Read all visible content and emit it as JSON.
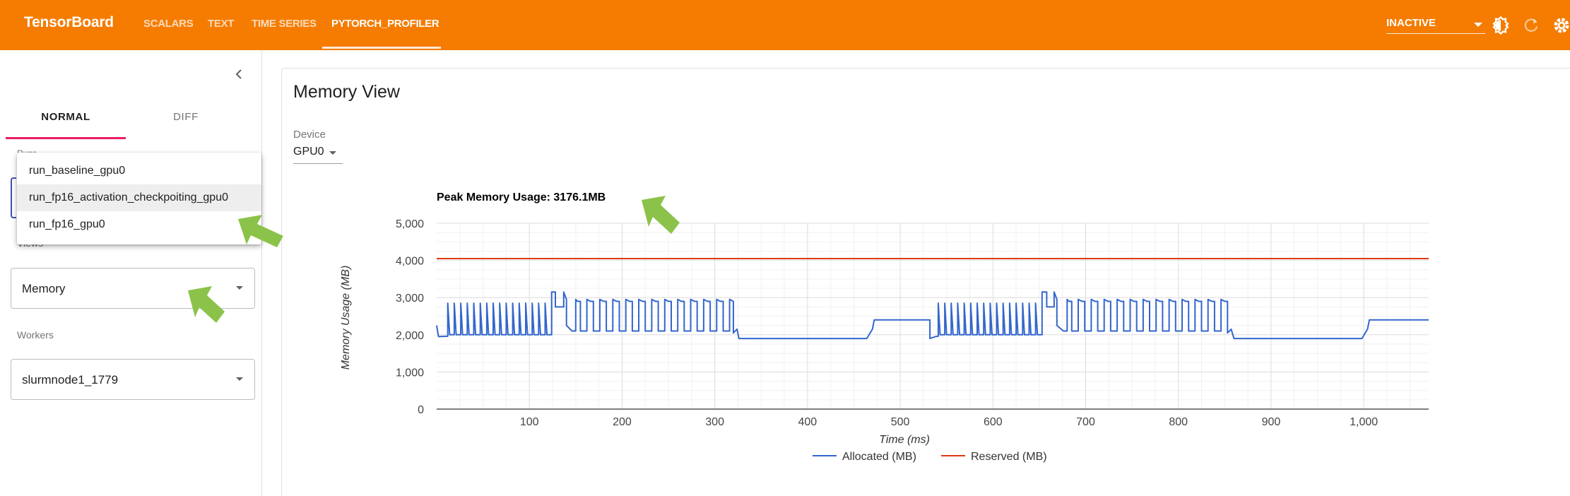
{
  "app": {
    "brand": "TensorBoard",
    "nav_tabs": [
      {
        "label": "SCALARS",
        "active": false
      },
      {
        "label": "TEXT",
        "active": false
      },
      {
        "label": "TIME SERIES",
        "active": false
      },
      {
        "label": "PYTORCH_PROFILER",
        "active": true
      }
    ],
    "status_select": {
      "value": "INACTIVE"
    },
    "toolbar_icons": [
      "theme-toggle-icon",
      "refresh-icon",
      "settings-icon"
    ]
  },
  "sidebar": {
    "tabs": [
      {
        "label": "NORMAL",
        "active": true
      },
      {
        "label": "DIFF",
        "active": false
      }
    ],
    "runs": {
      "label": "Runs",
      "options": [
        "run_baseline_gpu0",
        "run_fp16_activation_checkpoiting_gpu0",
        "run_fp16_gpu0"
      ],
      "highlighted": "run_fp16_activation_checkpoiting_gpu0"
    },
    "views": {
      "label": "Views",
      "value": "Memory"
    },
    "workers": {
      "label": "Workers",
      "value": "slurmnode1_1779"
    }
  },
  "main": {
    "title": "Memory View",
    "device": {
      "label": "Device",
      "value": "GPU0"
    },
    "peak_label": "Peak Memory Usage: 3176.1MB"
  },
  "chart_data": {
    "type": "line",
    "title": "Peak Memory Usage: 3176.1MB",
    "xlabel": "Time (ms)",
    "ylabel": "Memory Usage (MB)",
    "xlim": [
      0,
      1070
    ],
    "ylim": [
      0,
      5000
    ],
    "x_ticks": [
      100,
      200,
      300,
      400,
      500,
      600,
      700,
      800,
      900,
      1000
    ],
    "x_tick_labels": [
      "100",
      "200",
      "300",
      "400",
      "500",
      "600",
      "700",
      "800",
      "900",
      "1,000"
    ],
    "y_ticks": [
      0,
      1000,
      2000,
      3000,
      4000,
      5000
    ],
    "y_tick_labels": [
      "0",
      "1,000",
      "2,000",
      "3,000",
      "4,000",
      "5,000"
    ],
    "grid": true,
    "legend_position": "bottom-center",
    "series": [
      {
        "name": "Allocated (MB)",
        "color": "#3366cc",
        "points": [
          [
            0,
            2250
          ],
          [
            2,
            1950
          ],
          [
            12,
            1960
          ],
          [
            12,
            2850
          ],
          [
            14,
            2000
          ],
          [
            19,
            2000
          ],
          [
            19,
            2850
          ],
          [
            21,
            2000
          ],
          [
            26,
            2000
          ],
          [
            26,
            2850
          ],
          [
            28,
            2000
          ],
          [
            33,
            2000
          ],
          [
            33,
            2850
          ],
          [
            35,
            2000
          ],
          [
            40,
            2000
          ],
          [
            40,
            2850
          ],
          [
            42,
            2000
          ],
          [
            47,
            2000
          ],
          [
            47,
            2850
          ],
          [
            49,
            2000
          ],
          [
            54,
            2000
          ],
          [
            54,
            2850
          ],
          [
            56,
            2000
          ],
          [
            61,
            2000
          ],
          [
            61,
            2850
          ],
          [
            63,
            2000
          ],
          [
            68,
            2000
          ],
          [
            68,
            2850
          ],
          [
            70,
            2000
          ],
          [
            75,
            2000
          ],
          [
            75,
            2850
          ],
          [
            77,
            2000
          ],
          [
            82,
            2000
          ],
          [
            82,
            2850
          ],
          [
            84,
            2000
          ],
          [
            89,
            2000
          ],
          [
            89,
            2850
          ],
          [
            91,
            2000
          ],
          [
            96,
            2000
          ],
          [
            96,
            2850
          ],
          [
            98,
            2000
          ],
          [
            103,
            2000
          ],
          [
            103,
            2850
          ],
          [
            105,
            2000
          ],
          [
            110,
            2000
          ],
          [
            110,
            2850
          ],
          [
            112,
            2000
          ],
          [
            117,
            2000
          ],
          [
            117,
            2850
          ],
          [
            119,
            2000
          ],
          [
            124,
            2000
          ],
          [
            124,
            3150
          ],
          [
            128,
            3150
          ],
          [
            128,
            2750
          ],
          [
            137,
            2750
          ],
          [
            137,
            3150
          ],
          [
            140,
            2950
          ],
          [
            140,
            2250
          ],
          [
            146,
            2100
          ],
          [
            150,
            2100
          ],
          [
            150,
            2950
          ],
          [
            152,
            2900
          ],
          [
            155,
            2900
          ],
          [
            155,
            2100
          ],
          [
            162,
            2100
          ],
          [
            162,
            2950
          ],
          [
            166,
            2900
          ],
          [
            169,
            2900
          ],
          [
            169,
            2100
          ],
          [
            176,
            2100
          ],
          [
            176,
            2950
          ],
          [
            180,
            2900
          ],
          [
            183,
            2900
          ],
          [
            183,
            2100
          ],
          [
            190,
            2100
          ],
          [
            190,
            2950
          ],
          [
            194,
            2900
          ],
          [
            197,
            2900
          ],
          [
            197,
            2100
          ],
          [
            204,
            2100
          ],
          [
            204,
            2950
          ],
          [
            208,
            2900
          ],
          [
            211,
            2900
          ],
          [
            211,
            2100
          ],
          [
            218,
            2100
          ],
          [
            218,
            2950
          ],
          [
            222,
            2900
          ],
          [
            225,
            2900
          ],
          [
            225,
            2100
          ],
          [
            232,
            2100
          ],
          [
            232,
            2950
          ],
          [
            236,
            2900
          ],
          [
            239,
            2900
          ],
          [
            239,
            2100
          ],
          [
            246,
            2100
          ],
          [
            246,
            2950
          ],
          [
            250,
            2900
          ],
          [
            253,
            2900
          ],
          [
            253,
            2100
          ],
          [
            260,
            2100
          ],
          [
            260,
            2950
          ],
          [
            264,
            2900
          ],
          [
            267,
            2900
          ],
          [
            267,
            2100
          ],
          [
            274,
            2100
          ],
          [
            274,
            2950
          ],
          [
            278,
            2900
          ],
          [
            281,
            2900
          ],
          [
            281,
            2100
          ],
          [
            288,
            2100
          ],
          [
            288,
            2950
          ],
          [
            292,
            2900
          ],
          [
            295,
            2900
          ],
          [
            295,
            2100
          ],
          [
            302,
            2100
          ],
          [
            302,
            2950
          ],
          [
            306,
            2900
          ],
          [
            309,
            2900
          ],
          [
            309,
            2100
          ],
          [
            316,
            2100
          ],
          [
            316,
            2950
          ],
          [
            320,
            2900
          ],
          [
            320,
            2050
          ],
          [
            324,
            2150
          ],
          [
            326,
            1900
          ],
          [
            464,
            1900
          ],
          [
            470,
            2150
          ],
          [
            472,
            2400
          ],
          [
            532,
            2400
          ],
          [
            532,
            1900
          ],
          [
            538,
            1950
          ],
          [
            541,
            1960
          ],
          [
            541,
            2850
          ],
          [
            543,
            2000
          ],
          [
            548,
            2000
          ],
          [
            548,
            2850
          ],
          [
            550,
            2000
          ],
          [
            555,
            2000
          ],
          [
            555,
            2850
          ],
          [
            557,
            2000
          ],
          [
            562,
            2000
          ],
          [
            562,
            2850
          ],
          [
            564,
            2000
          ],
          [
            569,
            2000
          ],
          [
            569,
            2850
          ],
          [
            571,
            2000
          ],
          [
            576,
            2000
          ],
          [
            576,
            2850
          ],
          [
            578,
            2000
          ],
          [
            583,
            2000
          ],
          [
            583,
            2850
          ],
          [
            585,
            2000
          ],
          [
            590,
            2000
          ],
          [
            590,
            2850
          ],
          [
            592,
            2000
          ],
          [
            597,
            2000
          ],
          [
            597,
            2850
          ],
          [
            599,
            2000
          ],
          [
            604,
            2000
          ],
          [
            604,
            2850
          ],
          [
            606,
            2000
          ],
          [
            611,
            2000
          ],
          [
            611,
            2850
          ],
          [
            613,
            2000
          ],
          [
            618,
            2000
          ],
          [
            618,
            2850
          ],
          [
            620,
            2000
          ],
          [
            625,
            2000
          ],
          [
            625,
            2850
          ],
          [
            627,
            2000
          ],
          [
            632,
            2000
          ],
          [
            632,
            2850
          ],
          [
            634,
            2000
          ],
          [
            639,
            2000
          ],
          [
            639,
            2850
          ],
          [
            641,
            2000
          ],
          [
            646,
            2000
          ],
          [
            646,
            2850
          ],
          [
            648,
            2000
          ],
          [
            653,
            2000
          ],
          [
            653,
            3150
          ],
          [
            658,
            3150
          ],
          [
            658,
            2750
          ],
          [
            666,
            2750
          ],
          [
            666,
            3150
          ],
          [
            669,
            2950
          ],
          [
            669,
            2250
          ],
          [
            676,
            2100
          ],
          [
            680,
            2100
          ],
          [
            680,
            2950
          ],
          [
            682,
            2900
          ],
          [
            685,
            2900
          ],
          [
            685,
            2100
          ],
          [
            692,
            2100
          ],
          [
            692,
            2950
          ],
          [
            696,
            2900
          ],
          [
            699,
            2900
          ],
          [
            699,
            2100
          ],
          [
            706,
            2100
          ],
          [
            706,
            2950
          ],
          [
            710,
            2900
          ],
          [
            713,
            2900
          ],
          [
            713,
            2100
          ],
          [
            720,
            2100
          ],
          [
            720,
            2950
          ],
          [
            724,
            2900
          ],
          [
            727,
            2900
          ],
          [
            727,
            2100
          ],
          [
            734,
            2100
          ],
          [
            734,
            2950
          ],
          [
            738,
            2900
          ],
          [
            741,
            2900
          ],
          [
            741,
            2100
          ],
          [
            748,
            2100
          ],
          [
            748,
            2950
          ],
          [
            752,
            2900
          ],
          [
            755,
            2900
          ],
          [
            755,
            2100
          ],
          [
            762,
            2100
          ],
          [
            762,
            2950
          ],
          [
            766,
            2900
          ],
          [
            769,
            2900
          ],
          [
            769,
            2100
          ],
          [
            776,
            2100
          ],
          [
            776,
            2950
          ],
          [
            780,
            2900
          ],
          [
            783,
            2900
          ],
          [
            783,
            2100
          ],
          [
            790,
            2100
          ],
          [
            790,
            2950
          ],
          [
            794,
            2900
          ],
          [
            797,
            2900
          ],
          [
            797,
            2100
          ],
          [
            804,
            2100
          ],
          [
            804,
            2950
          ],
          [
            808,
            2900
          ],
          [
            811,
            2900
          ],
          [
            811,
            2100
          ],
          [
            818,
            2100
          ],
          [
            818,
            2950
          ],
          [
            822,
            2900
          ],
          [
            825,
            2900
          ],
          [
            825,
            2100
          ],
          [
            832,
            2100
          ],
          [
            832,
            2950
          ],
          [
            836,
            2900
          ],
          [
            839,
            2900
          ],
          [
            839,
            2100
          ],
          [
            846,
            2100
          ],
          [
            846,
            2950
          ],
          [
            850,
            2900
          ],
          [
            853,
            2900
          ],
          [
            853,
            2050
          ],
          [
            857,
            2150
          ],
          [
            860,
            1900
          ],
          [
            998,
            1900
          ],
          [
            1004,
            2150
          ],
          [
            1006,
            2400
          ],
          [
            1070,
            2400
          ]
        ]
      },
      {
        "name": "Reserved (MB)",
        "color": "#dc3912",
        "points": [
          [
            0,
            4050
          ],
          [
            1070,
            4050
          ]
        ]
      }
    ]
  }
}
